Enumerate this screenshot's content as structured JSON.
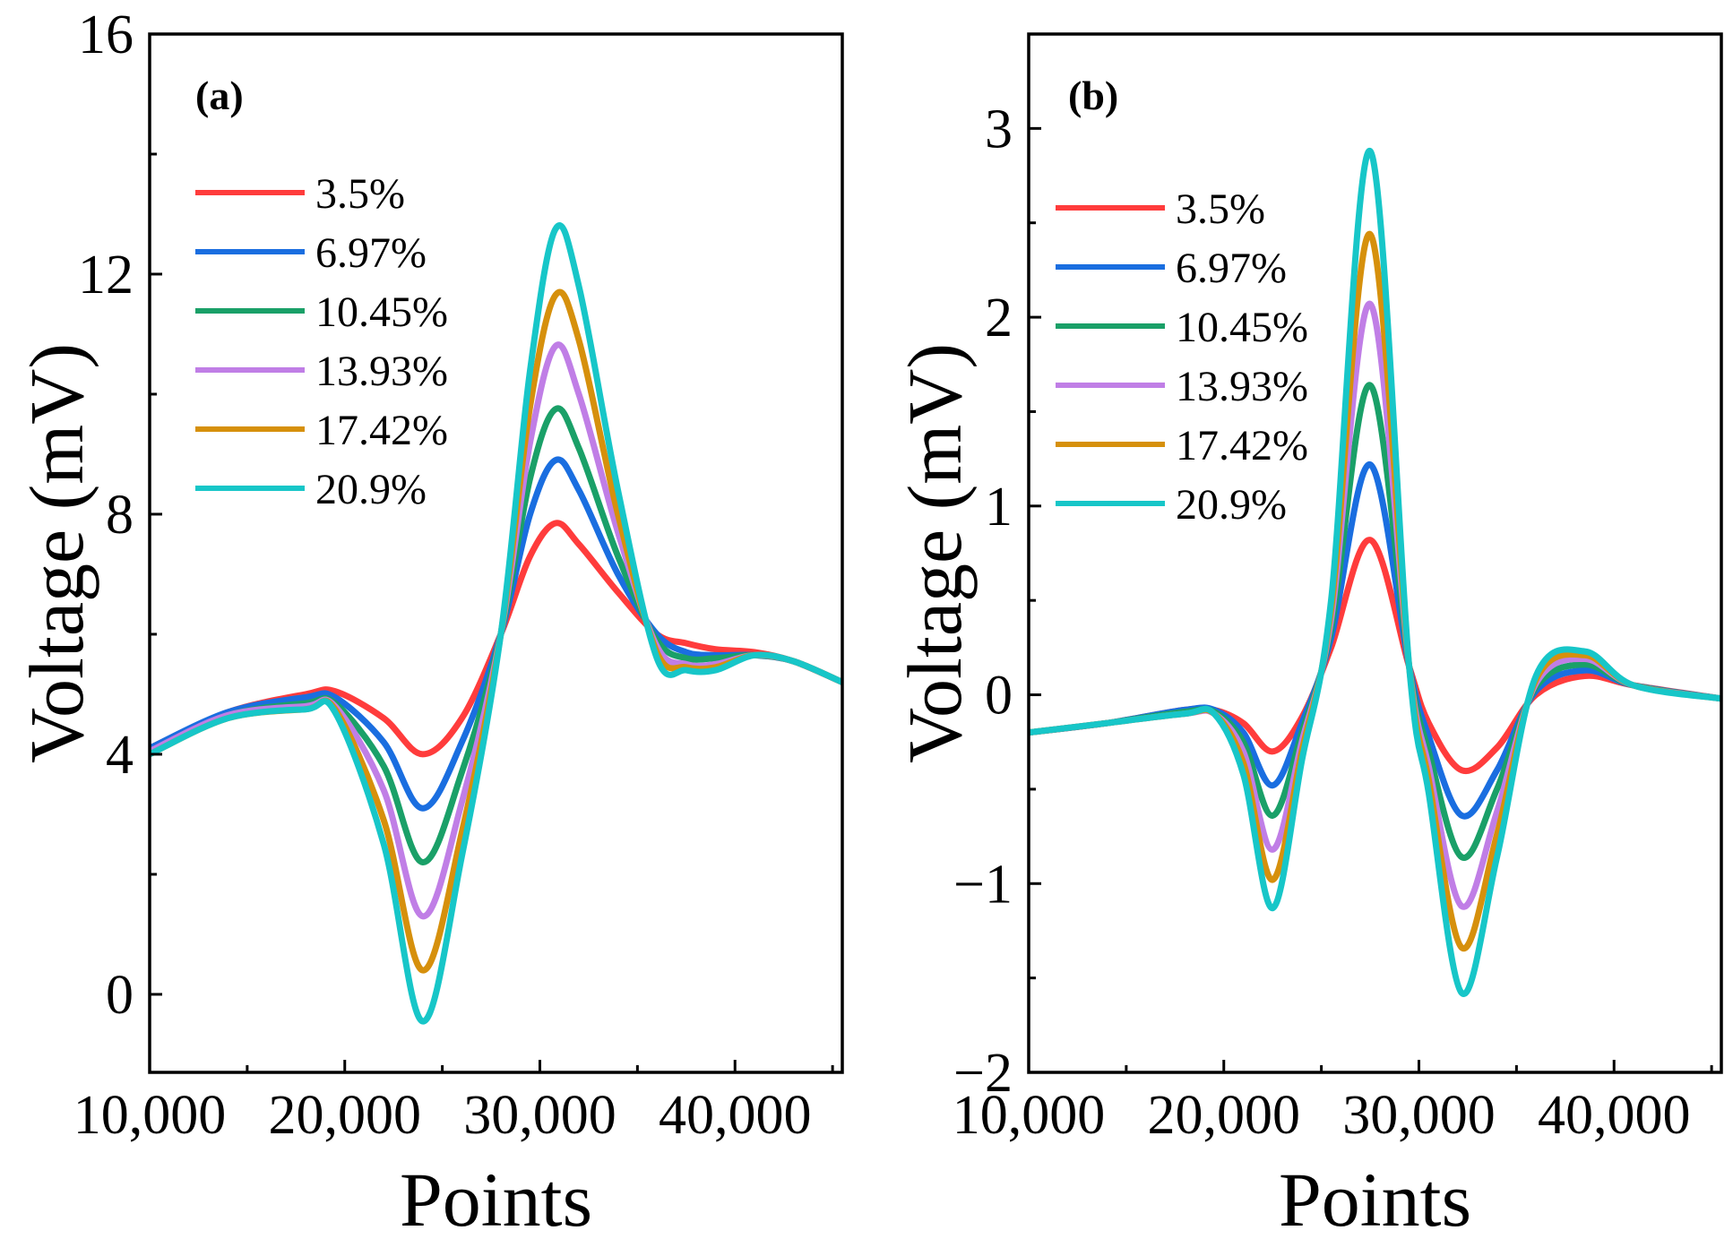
{
  "chart_data": [
    {
      "type": "line",
      "panel_label": "(a)",
      "xlabel": "Points",
      "ylabel": "Voltage (mV)",
      "xlim": [
        10000,
        45500
      ],
      "ylim": [
        -1.3,
        16
      ],
      "xticks": [
        10000,
        20000,
        30000,
        40000
      ],
      "xtick_labels": [
        "10,000",
        "20,000",
        "30,000",
        "40,000"
      ],
      "yticks": [
        0,
        4,
        8,
        12,
        16
      ],
      "ytick_labels": [
        "0",
        "4",
        "8",
        "12",
        "16"
      ],
      "legend": "top-left",
      "x": [
        10000,
        14000,
        18000,
        19500,
        22000,
        24000,
        26000,
        28000,
        29500,
        30800,
        32000,
        34000,
        36000,
        37500,
        39000,
        41000,
        43000,
        45500
      ],
      "series": [
        {
          "name": "3.5%",
          "color": "#ff3c3c",
          "values": [
            4.1,
            4.7,
            5.0,
            5.05,
            4.6,
            4.0,
            4.6,
            6.0,
            7.3,
            7.85,
            7.5,
            6.7,
            6.0,
            5.85,
            5.75,
            5.7,
            5.55,
            5.2
          ]
        },
        {
          "name": "6.97%",
          "color": "#1a6ee0",
          "values": [
            4.1,
            4.7,
            4.95,
            4.95,
            4.2,
            3.1,
            4.2,
            6.0,
            8.0,
            8.9,
            8.4,
            7.0,
            6.0,
            5.7,
            5.65,
            5.65,
            5.55,
            5.2
          ]
        },
        {
          "name": "10.45%",
          "color": "#1aa068",
          "values": [
            4.05,
            4.65,
            4.85,
            4.85,
            3.8,
            2.2,
            3.7,
            6.0,
            8.6,
            9.75,
            9.1,
            7.3,
            5.9,
            5.6,
            5.6,
            5.65,
            5.55,
            5.2
          ]
        },
        {
          "name": "13.93%",
          "color": "#c07ee6",
          "values": [
            4.05,
            4.65,
            4.8,
            4.8,
            3.4,
            1.3,
            3.2,
            6.0,
            9.2,
            10.8,
            10.0,
            7.7,
            5.8,
            5.5,
            5.5,
            5.65,
            5.55,
            5.2
          ]
        },
        {
          "name": "17.42%",
          "color": "#d6900c",
          "values": [
            4.0,
            4.6,
            4.75,
            4.75,
            2.9,
            0.4,
            2.7,
            6.0,
            9.8,
            11.65,
            10.9,
            8.0,
            5.7,
            5.45,
            5.45,
            5.65,
            5.55,
            5.2
          ]
        },
        {
          "name": "20.9%",
          "color": "#17c6c8",
          "values": [
            4.0,
            4.6,
            4.75,
            4.7,
            2.5,
            -0.45,
            2.3,
            6.0,
            10.4,
            12.75,
            11.8,
            8.4,
            5.6,
            5.4,
            5.4,
            5.65,
            5.55,
            5.2
          ]
        }
      ]
    },
    {
      "type": "line",
      "panel_label": "(b)",
      "xlabel": "Points",
      "ylabel": "Voltage (mV)",
      "xlim": [
        10000,
        45500
      ],
      "ylim": [
        -2,
        3.5
      ],
      "xticks": [
        10000,
        20000,
        30000,
        40000
      ],
      "xtick_labels": [
        "10,000",
        "20,000",
        "30,000",
        "40,000"
      ],
      "yticks": [
        -2,
        -1,
        0,
        1,
        2,
        3
      ],
      "ytick_labels": [
        "−2",
        "−1",
        "0",
        "1",
        "2",
        "3"
      ],
      "legend": "top-left",
      "x": [
        10000,
        14000,
        18000,
        19500,
        21000,
        22500,
        24000,
        25500,
        27500,
        29500,
        30500,
        32200,
        34000,
        36000,
        38500,
        41000,
        45500
      ],
      "series": [
        {
          "name": "3.5%",
          "color": "#ff3c3c",
          "values": [
            -0.2,
            -0.15,
            -0.08,
            -0.08,
            -0.15,
            -0.3,
            -0.12,
            0.25,
            0.82,
            0.15,
            -0.15,
            -0.4,
            -0.28,
            0.0,
            0.1,
            0.05,
            -0.02
          ]
        },
        {
          "name": "6.97%",
          "color": "#1a6ee0",
          "values": [
            -0.2,
            -0.15,
            -0.08,
            -0.08,
            -0.2,
            -0.48,
            -0.15,
            0.3,
            1.22,
            0.15,
            -0.22,
            -0.64,
            -0.4,
            0.02,
            0.13,
            0.05,
            -0.02
          ]
        },
        {
          "name": "10.45%",
          "color": "#1aa068",
          "values": [
            -0.2,
            -0.15,
            -0.09,
            -0.09,
            -0.25,
            -0.64,
            -0.2,
            0.35,
            1.64,
            0.15,
            -0.3,
            -0.86,
            -0.5,
            0.04,
            0.16,
            0.05,
            -0.02
          ]
        },
        {
          "name": "13.93%",
          "color": "#c07ee6",
          "values": [
            -0.2,
            -0.15,
            -0.1,
            -0.1,
            -0.3,
            -0.82,
            -0.25,
            0.4,
            2.07,
            0.15,
            -0.38,
            -1.12,
            -0.62,
            0.06,
            0.19,
            0.05,
            -0.02
          ]
        },
        {
          "name": "17.42%",
          "color": "#d6900c",
          "values": [
            -0.2,
            -0.15,
            -0.1,
            -0.1,
            -0.36,
            -0.98,
            -0.3,
            0.45,
            2.44,
            0.15,
            -0.45,
            -1.34,
            -0.74,
            0.08,
            0.21,
            0.05,
            -0.02
          ]
        },
        {
          "name": "20.9%",
          "color": "#17c6c8",
          "values": [
            -0.2,
            -0.15,
            -0.1,
            -0.1,
            -0.42,
            -1.13,
            -0.35,
            0.5,
            2.88,
            0.15,
            -0.52,
            -1.58,
            -0.86,
            0.1,
            0.23,
            0.05,
            -0.02
          ]
        }
      ]
    }
  ]
}
